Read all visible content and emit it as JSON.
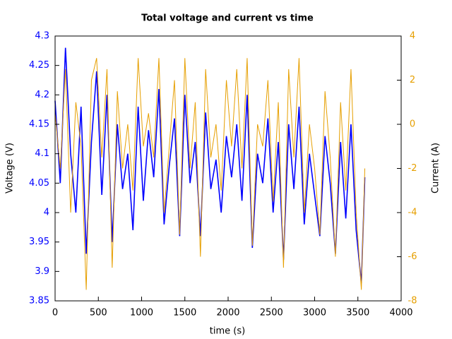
{
  "chart_data": {
    "type": "line",
    "title": "Total voltage and current vs time",
    "x_label": "time (s)",
    "y_label": "Voltage (V)",
    "y2_label": "Current (A)",
    "x": [
      0,
      60,
      120,
      180,
      240,
      300,
      360,
      420,
      480,
      540,
      600,
      660,
      720,
      780,
      840,
      900,
      960,
      1020,
      1080,
      1140,
      1200,
      1260,
      1320,
      1380,
      1440,
      1500,
      1560,
      1620,
      1680,
      1740,
      1800,
      1860,
      1920,
      1980,
      2040,
      2100,
      2160,
      2220,
      2280,
      2340,
      2400,
      2460,
      2520,
      2580,
      2640,
      2700,
      2760,
      2820,
      2880,
      2940,
      3000,
      3060,
      3120,
      3180,
      3240,
      3300,
      3360,
      3420,
      3480,
      3540,
      3580
    ],
    "series": [
      {
        "name": "Voltage",
        "color": "#0000ff",
        "axis": "y",
        "values": [
          4.19,
          4.05,
          4.28,
          4.1,
          4.0,
          4.18,
          3.93,
          4.12,
          4.24,
          4.03,
          4.2,
          3.95,
          4.15,
          4.04,
          4.1,
          3.97,
          4.18,
          4.02,
          4.14,
          4.06,
          4.21,
          3.98,
          4.08,
          4.16,
          3.96,
          4.2,
          4.05,
          4.12,
          3.96,
          4.17,
          4.04,
          4.09,
          4.0,
          4.13,
          4.06,
          4.15,
          4.02,
          4.2,
          3.94,
          4.1,
          4.05,
          4.16,
          4.0,
          4.12,
          3.92,
          4.15,
          4.04,
          4.18,
          3.98,
          4.1,
          4.03,
          3.96,
          4.13,
          4.05,
          3.93,
          4.12,
          3.99,
          4.15,
          3.97,
          3.88,
          4.06
        ]
      },
      {
        "name": "Current",
        "color": "#e69f00",
        "axis": "y2",
        "values": [
          0.5,
          -2,
          2.5,
          -4,
          1,
          -1,
          -7.5,
          2,
          3,
          -1.5,
          2.5,
          -6.5,
          1.5,
          -2,
          0,
          -3,
          3,
          -1,
          0.5,
          -1.5,
          3,
          -4,
          -1,
          2,
          -5,
          3,
          -2,
          1,
          -6,
          2.5,
          -1.5,
          0,
          -3,
          2,
          -1,
          2.5,
          -2,
          3,
          -5.5,
          0,
          -1,
          2,
          -3.5,
          1,
          -6.5,
          2.5,
          -1.5,
          3,
          -4,
          0,
          -2,
          -5,
          1.5,
          -1.5,
          -6,
          1,
          -3,
          2.5,
          -4,
          -7.5,
          -2
        ]
      }
    ],
    "xlim": [
      0,
      4000
    ],
    "xticks": [
      0,
      500,
      1000,
      1500,
      2000,
      2500,
      3000,
      3500,
      4000
    ],
    "ylim": [
      3.85,
      4.3
    ],
    "yticks": [
      3.85,
      3.9,
      3.95,
      4,
      4.05,
      4.1,
      4.15,
      4.2,
      4.25,
      4.3
    ],
    "y2lim": [
      -8,
      4
    ],
    "y2ticks": [
      -8,
      -6,
      -4,
      -2,
      0,
      2,
      4
    ]
  }
}
